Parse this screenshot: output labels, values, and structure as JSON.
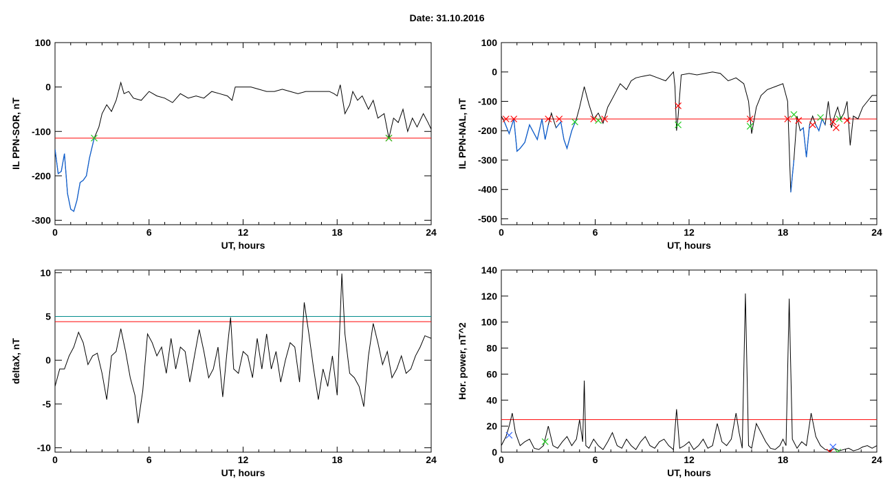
{
  "page": {
    "title": "Date:  31.10.2016"
  },
  "colors": {
    "trace": "#000000",
    "below_threshold_trace": "#1060d0",
    "threshold_red": "#ff0000",
    "threshold_teal": "#008b8b",
    "marker_red": "#ff0000",
    "marker_green": "#22cc22",
    "marker_blue": "#3366ff"
  },
  "chart_data": [
    {
      "id": "ppn-sor",
      "type": "line",
      "xlabel": "UT, hours",
      "ylabel": "IL PPN-SOR, nT",
      "xlim": [
        0,
        24
      ],
      "ylim": [
        -310,
        100
      ],
      "xticks": [
        0,
        6,
        12,
        18,
        24
      ],
      "yticks": [
        -300,
        -200,
        -100,
        0,
        100
      ],
      "threshold_lines": [
        {
          "y": -115,
          "color": "red"
        }
      ],
      "below_threshold_highlight": true,
      "series": [
        {
          "x": [
            0,
            0.2,
            0.4,
            0.6,
            0.8,
            1.0,
            1.2,
            1.4,
            1.6,
            1.8,
            2.0,
            2.2,
            2.5,
            2.8,
            3.0,
            3.3,
            3.6,
            3.9,
            4.2,
            4.4,
            4.7,
            5.0,
            5.5,
            6.0,
            6.5,
            7.0,
            7.5,
            8.0,
            8.5,
            9.0,
            9.5,
            10.0,
            10.5,
            11.0,
            11.3,
            11.5,
            12.0,
            12.5,
            13.0,
            13.5,
            14.0,
            14.5,
            15.0,
            15.5,
            16.0,
            16.5,
            17.0,
            17.5,
            17.8,
            18.0,
            18.2,
            18.5,
            18.8,
            19.0,
            19.3,
            19.6,
            20.0,
            20.3,
            20.6,
            21.0,
            21.3,
            21.6,
            21.9,
            22.2,
            22.5,
            22.8,
            23.1,
            23.5,
            23.8,
            24.0
          ],
          "y": [
            -140,
            -195,
            -190,
            -150,
            -240,
            -275,
            -280,
            -255,
            -215,
            -210,
            -200,
            -160,
            -115,
            -90,
            -60,
            -40,
            -55,
            -30,
            10,
            -15,
            -10,
            -25,
            -30,
            -10,
            -20,
            -25,
            -35,
            -15,
            -25,
            -20,
            -25,
            -10,
            -15,
            -20,
            -30,
            0,
            0,
            0,
            -5,
            -10,
            -10,
            -5,
            -10,
            -15,
            -10,
            -10,
            -10,
            -10,
            -15,
            -20,
            5,
            -60,
            -40,
            -10,
            -30,
            -20,
            -50,
            -30,
            -70,
            -60,
            -115,
            -70,
            -80,
            -50,
            -100,
            -70,
            -90,
            -60,
            -80,
            -95
          ]
        }
      ],
      "markers": [
        {
          "x": 2.5,
          "y": -115,
          "color": "green"
        },
        {
          "x": 21.3,
          "y": -115,
          "color": "red"
        },
        {
          "x": 21.3,
          "y": -115,
          "color": "green"
        }
      ]
    },
    {
      "id": "ppn-nal",
      "type": "line",
      "xlabel": "UT, hours",
      "ylabel": "IL PPN-NAL, nT",
      "xlim": [
        0,
        24
      ],
      "ylim": [
        -520,
        100
      ],
      "xticks": [
        0,
        6,
        12,
        18,
        24
      ],
      "yticks": [
        -500,
        -400,
        -300,
        -200,
        -100,
        0,
        100
      ],
      "threshold_lines": [
        {
          "y": -160,
          "color": "red"
        }
      ],
      "below_threshold_highlight": true,
      "series": [
        {
          "x": [
            0,
            0.2,
            0.5,
            0.8,
            1.0,
            1.2,
            1.5,
            1.8,
            2.0,
            2.3,
            2.6,
            2.8,
            3.0,
            3.2,
            3.5,
            3.8,
            4.0,
            4.2,
            4.5,
            4.8,
            5.0,
            5.3,
            5.6,
            5.9,
            6.2,
            6.5,
            6.8,
            7.0,
            7.3,
            7.6,
            8.0,
            8.3,
            8.6,
            9.0,
            9.5,
            10.0,
            10.5,
            11.0,
            11.1,
            11.2,
            11.3,
            11.5,
            12.0,
            12.5,
            13.0,
            13.5,
            14.0,
            14.5,
            15.0,
            15.5,
            15.8,
            16.0,
            16.3,
            16.6,
            17.0,
            17.5,
            18.0,
            18.3,
            18.5,
            18.7,
            18.9,
            19.1,
            19.3,
            19.5,
            19.7,
            19.9,
            20.1,
            20.3,
            20.5,
            20.7,
            20.9,
            21.1,
            21.3,
            21.5,
            21.7,
            21.9,
            22.1,
            22.3,
            22.5,
            22.8,
            23.1,
            23.4,
            23.7,
            24.0
          ],
          "y": [
            -150,
            -170,
            -210,
            -160,
            -270,
            -260,
            -240,
            -180,
            -200,
            -230,
            -160,
            -230,
            -180,
            -140,
            -190,
            -170,
            -230,
            -260,
            -200,
            -160,
            -120,
            -50,
            -110,
            -160,
            -140,
            -175,
            -120,
            -100,
            -70,
            -40,
            -60,
            -30,
            -20,
            -15,
            -10,
            -20,
            -30,
            0,
            -50,
            -200,
            -150,
            -10,
            -5,
            -10,
            -5,
            0,
            -5,
            -30,
            -20,
            -40,
            -100,
            -210,
            -120,
            -80,
            -60,
            -50,
            -40,
            -100,
            -410,
            -300,
            -150,
            -200,
            -190,
            -290,
            -180,
            -150,
            -180,
            -200,
            -160,
            -180,
            -100,
            -190,
            -150,
            -120,
            -160,
            -140,
            -100,
            -250,
            -150,
            -160,
            -120,
            -100,
            -80,
            -80
          ]
        }
      ],
      "markers": [
        {
          "x": 0.3,
          "y": -160,
          "color": "red"
        },
        {
          "x": 0.8,
          "y": -160,
          "color": "red"
        },
        {
          "x": 3.0,
          "y": -160,
          "color": "red"
        },
        {
          "x": 3.7,
          "y": -160,
          "color": "red"
        },
        {
          "x": 4.7,
          "y": -170,
          "color": "green"
        },
        {
          "x": 5.9,
          "y": -160,
          "color": "red"
        },
        {
          "x": 6.2,
          "y": -165,
          "color": "green"
        },
        {
          "x": 6.6,
          "y": -160,
          "color": "red"
        },
        {
          "x": 11.3,
          "y": -115,
          "color": "red"
        },
        {
          "x": 11.3,
          "y": -180,
          "color": "green"
        },
        {
          "x": 15.9,
          "y": -160,
          "color": "red"
        },
        {
          "x": 15.9,
          "y": -185,
          "color": "green"
        },
        {
          "x": 18.3,
          "y": -160,
          "color": "red"
        },
        {
          "x": 18.7,
          "y": -145,
          "color": "green"
        },
        {
          "x": 19.0,
          "y": -165,
          "color": "red"
        },
        {
          "x": 19.9,
          "y": -180,
          "color": "red"
        },
        {
          "x": 20.4,
          "y": -155,
          "color": "green"
        },
        {
          "x": 21.2,
          "y": -170,
          "color": "red"
        },
        {
          "x": 21.4,
          "y": -190,
          "color": "red"
        },
        {
          "x": 21.6,
          "y": -160,
          "color": "green"
        },
        {
          "x": 22.1,
          "y": -165,
          "color": "red"
        }
      ]
    },
    {
      "id": "deltax",
      "type": "line",
      "xlabel": "UT, hours",
      "ylabel": "deltaX, nT",
      "xlim": [
        0,
        24
      ],
      "ylim": [
        -10.5,
        10.3
      ],
      "xticks": [
        0,
        6,
        12,
        18,
        24
      ],
      "yticks": [
        -10,
        -5,
        0,
        5,
        10
      ],
      "threshold_lines": [
        {
          "y": 5.0,
          "color": "teal"
        },
        {
          "y": 4.4,
          "color": "red"
        }
      ],
      "below_threshold_highlight": false,
      "series": [
        {
          "x": [
            0,
            0.3,
            0.6,
            0.9,
            1.2,
            1.5,
            1.8,
            2.1,
            2.4,
            2.7,
            3.0,
            3.3,
            3.6,
            3.9,
            4.2,
            4.5,
            4.8,
            5.1,
            5.3,
            5.6,
            5.9,
            6.2,
            6.5,
            6.8,
            7.1,
            7.4,
            7.7,
            8.0,
            8.3,
            8.6,
            8.9,
            9.2,
            9.5,
            9.8,
            10.1,
            10.4,
            10.7,
            11.0,
            11.2,
            11.4,
            11.7,
            12.0,
            12.3,
            12.6,
            12.9,
            13.2,
            13.5,
            13.8,
            14.1,
            14.4,
            14.7,
            15.0,
            15.3,
            15.6,
            15.9,
            16.2,
            16.5,
            16.8,
            17.1,
            17.4,
            17.7,
            18.0,
            18.3,
            18.5,
            18.8,
            19.1,
            19.4,
            19.7,
            20.0,
            20.3,
            20.6,
            20.9,
            21.2,
            21.5,
            21.8,
            22.1,
            22.4,
            22.7,
            23.0,
            23.3,
            23.6,
            24.0
          ],
          "y": [
            -3,
            -1,
            -1,
            0.5,
            1.5,
            3.2,
            2.0,
            -0.5,
            0.5,
            0.8,
            -1.5,
            -4.5,
            0.5,
            1.0,
            3.6,
            1.0,
            -2.0,
            -4.0,
            -7.2,
            -3.5,
            3.0,
            2.0,
            0.5,
            1.5,
            -1.5,
            2.5,
            -1.0,
            1.5,
            1.0,
            -2.5,
            0.5,
            3.5,
            1.0,
            -2.0,
            -1.0,
            1.5,
            -4.2,
            1.5,
            4.9,
            -1.0,
            -1.5,
            1.0,
            0.5,
            -2.0,
            2.5,
            -1.0,
            3.0,
            -1.0,
            1.0,
            -2.5,
            0.0,
            2.0,
            1.5,
            -2.5,
            6.6,
            3.0,
            -1.0,
            -4.5,
            -1.0,
            -3.0,
            0.5,
            -4.0,
            9.9,
            3.0,
            -1.5,
            -2.0,
            -3.0,
            -5.3,
            0.5,
            4.2,
            2.0,
            -0.5,
            1.0,
            -2.0,
            -1.0,
            0.5,
            -1.5,
            -1.0,
            0.5,
            1.5,
            2.8,
            2.5
          ]
        }
      ],
      "markers": []
    },
    {
      "id": "hor-power",
      "type": "line",
      "xlabel": "UT, hours",
      "ylabel": "Hor. power, nT^2",
      "xlim": [
        0,
        24
      ],
      "ylim": [
        0,
        140
      ],
      "xticks": [
        0,
        6,
        12,
        18,
        24
      ],
      "yticks": [
        0,
        20,
        40,
        60,
        80,
        100,
        120,
        140
      ],
      "threshold_lines": [
        {
          "y": 25,
          "color": "red"
        }
      ],
      "below_threshold_highlight": false,
      "series": [
        {
          "x": [
            0,
            0.3,
            0.5,
            0.7,
            0.9,
            1.2,
            1.5,
            1.8,
            2.1,
            2.4,
            2.7,
            3.0,
            3.3,
            3.6,
            3.9,
            4.2,
            4.5,
            4.8,
            5.0,
            5.2,
            5.3,
            5.4,
            5.6,
            5.9,
            6.2,
            6.5,
            6.8,
            7.1,
            7.4,
            7.7,
            8.0,
            8.3,
            8.6,
            8.9,
            9.2,
            9.5,
            9.8,
            10.1,
            10.4,
            10.7,
            11.0,
            11.2,
            11.4,
            11.7,
            12.0,
            12.3,
            12.6,
            12.9,
            13.2,
            13.5,
            13.8,
            14.1,
            14.4,
            14.7,
            15.0,
            15.2,
            15.4,
            15.6,
            15.8,
            16.0,
            16.3,
            16.6,
            16.9,
            17.2,
            17.5,
            17.8,
            18.0,
            18.2,
            18.4,
            18.6,
            18.9,
            19.2,
            19.5,
            19.8,
            20.1,
            20.4,
            20.7,
            21.0,
            21.3,
            21.6,
            21.9,
            22.2,
            22.5,
            22.8,
            23.1,
            23.4,
            23.7,
            24.0
          ],
          "y": [
            5,
            12,
            20,
            30,
            15,
            5,
            8,
            10,
            3,
            2,
            5,
            20,
            5,
            3,
            8,
            12,
            5,
            10,
            25,
            8,
            55,
            5,
            3,
            10,
            5,
            2,
            8,
            15,
            5,
            3,
            10,
            5,
            2,
            8,
            12,
            5,
            3,
            8,
            10,
            5,
            2,
            33,
            3,
            5,
            8,
            2,
            5,
            10,
            3,
            5,
            22,
            8,
            5,
            10,
            30,
            15,
            3,
            122,
            5,
            3,
            22,
            15,
            8,
            3,
            2,
            5,
            10,
            5,
            118,
            10,
            3,
            8,
            5,
            30,
            12,
            5,
            2,
            1,
            3,
            1,
            2,
            3,
            1,
            2,
            4,
            5,
            3,
            5
          ]
        }
      ],
      "markers": [
        {
          "x": 0.5,
          "y": 13,
          "color": "blue"
        },
        {
          "x": 2.8,
          "y": 8,
          "color": "green"
        },
        {
          "x": 21.0,
          "y": 0,
          "color": "red"
        },
        {
          "x": 21.2,
          "y": 4,
          "color": "blue"
        },
        {
          "x": 21.5,
          "y": 0,
          "color": "green"
        }
      ]
    }
  ]
}
